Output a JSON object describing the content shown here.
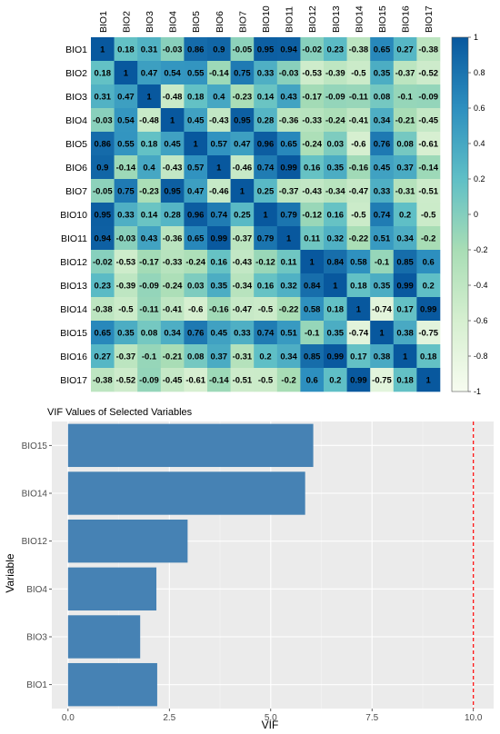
{
  "chart_data": [
    {
      "type": "heatmap",
      "title": "",
      "variables": [
        "BIO1",
        "BIO2",
        "BIO3",
        "BIO4",
        "BIO5",
        "BIO6",
        "BIO7",
        "BIO10",
        "BIO11",
        "BIO12",
        "BIO13",
        "BIO14",
        "BIO15",
        "BIO16",
        "BIO17"
      ],
      "values": [
        [
          "1",
          "0.18",
          "0.31",
          "-0.03",
          "0.86",
          "0.9",
          "-0.05",
          "0.95",
          "0.94",
          "-0.02",
          "0.23",
          "-0.38",
          "0.65",
          "0.27",
          "-0.38"
        ],
        [
          "0.18",
          "1",
          "0.47",
          "0.54",
          "0.55",
          "-0.14",
          "0.75",
          "0.33",
          "-0.03",
          "-0.53",
          "-0.39",
          "-0.5",
          "0.35",
          "-0.37",
          "-0.52"
        ],
        [
          "0.31",
          "0.47",
          "1",
          "-0.48",
          "0.18",
          "0.4",
          "-0.23",
          "0.14",
          "0.43",
          "-0.17",
          "-0.09",
          "-0.11",
          "0.08",
          "-0.1",
          "-0.09"
        ],
        [
          "-0.03",
          "0.54",
          "-0.48",
          "1",
          "0.45",
          "-0.43",
          "0.95",
          "0.28",
          "-0.36",
          "-0.33",
          "-0.24",
          "-0.41",
          "0.34",
          "-0.21",
          "-0.45"
        ],
        [
          "0.86",
          "0.55",
          "0.18",
          "0.45",
          "1",
          "0.57",
          "0.47",
          "0.96",
          "0.65",
          "-0.24",
          "0.03",
          "-0.6",
          "0.76",
          "0.08",
          "-0.61"
        ],
        [
          "0.9",
          "-0.14",
          "0.4",
          "-0.43",
          "0.57",
          "1",
          "-0.46",
          "0.74",
          "0.99",
          "0.16",
          "0.35",
          "-0.16",
          "0.45",
          "0.37",
          "-0.14"
        ],
        [
          "-0.05",
          "0.75",
          "-0.23",
          "0.95",
          "0.47",
          "-0.46",
          "1",
          "0.25",
          "-0.37",
          "-0.43",
          "-0.34",
          "-0.47",
          "0.33",
          "-0.31",
          "-0.51"
        ],
        [
          "0.95",
          "0.33",
          "0.14",
          "0.28",
          "0.96",
          "0.74",
          "0.25",
          "1",
          "0.79",
          "-0.12",
          "0.16",
          "-0.5",
          "0.74",
          "0.2",
          "-0.5"
        ],
        [
          "0.94",
          "-0.03",
          "0.43",
          "-0.36",
          "0.65",
          "0.99",
          "-0.37",
          "0.79",
          "1",
          "0.11",
          "0.32",
          "-0.22",
          "0.51",
          "0.34",
          "-0.2"
        ],
        [
          "-0.02",
          "-0.53",
          "-0.17",
          "-0.33",
          "-0.24",
          "0.16",
          "-0.43",
          "-0.12",
          "0.11",
          "1",
          "0.84",
          "0.58",
          "-0.1",
          "0.85",
          "0.6"
        ],
        [
          "0.23",
          "-0.39",
          "-0.09",
          "-0.24",
          "0.03",
          "0.35",
          "-0.34",
          "0.16",
          "0.32",
          "0.84",
          "1",
          "0.18",
          "0.35",
          "0.99",
          "0.2"
        ],
        [
          "-0.38",
          "-0.5",
          "-0.11",
          "-0.41",
          "-0.6",
          "-0.16",
          "-0.47",
          "-0.5",
          "-0.22",
          "0.58",
          "0.18",
          "1",
          "-0.74",
          "0.17",
          "0.99"
        ],
        [
          "0.65",
          "0.35",
          "0.08",
          "0.34",
          "0.76",
          "0.45",
          "0.33",
          "0.74",
          "0.51",
          "-0.1",
          "0.35",
          "-0.74",
          "1",
          "0.38",
          "-0.75"
        ],
        [
          "0.27",
          "-0.37",
          "-0.1",
          "-0.21",
          "0.08",
          "0.37",
          "-0.31",
          "0.2",
          "0.34",
          "0.85",
          "0.99",
          "0.17",
          "0.38",
          "1",
          "0.18"
        ],
        [
          "-0.38",
          "-0.52",
          "-0.09",
          "-0.45",
          "-0.61",
          "-0.14",
          "-0.51",
          "-0.5",
          "-0.2",
          "0.6",
          "0.2",
          "0.99",
          "-0.75",
          "0.18",
          "1"
        ]
      ],
      "color_scale": {
        "range": [
          -1,
          1
        ],
        "ticks": [
          "1",
          "0.8",
          "0.6",
          "0.4",
          "0.2",
          "0",
          "-0.2",
          "-0.4",
          "-0.6",
          "-0.8",
          "-1"
        ],
        "colors": [
          "#f7fcf0",
          "#d6efd0",
          "#a8ddb5",
          "#5fbfc6",
          "#2d8fbf",
          "#08589e"
        ]
      }
    },
    {
      "type": "bar",
      "orientation": "horizontal",
      "title": "VIF Values of Selected Variables",
      "xlabel": "VIF",
      "ylabel": "Variable",
      "categories": [
        "BIO15",
        "BIO14",
        "BIO12",
        "BIO4",
        "BIO3",
        "BIO1"
      ],
      "values": [
        6.05,
        5.85,
        2.95,
        2.18,
        1.78,
        2.2
      ],
      "xlim": [
        0,
        10.5
      ],
      "xticks": [
        "0.0",
        "2.5",
        "5.0",
        "7.5",
        "10.0"
      ],
      "threshold": 10,
      "bar_color": "#4682b4",
      "threshold_color": "#ff0000",
      "panel_color": "#ebebeb"
    }
  ]
}
